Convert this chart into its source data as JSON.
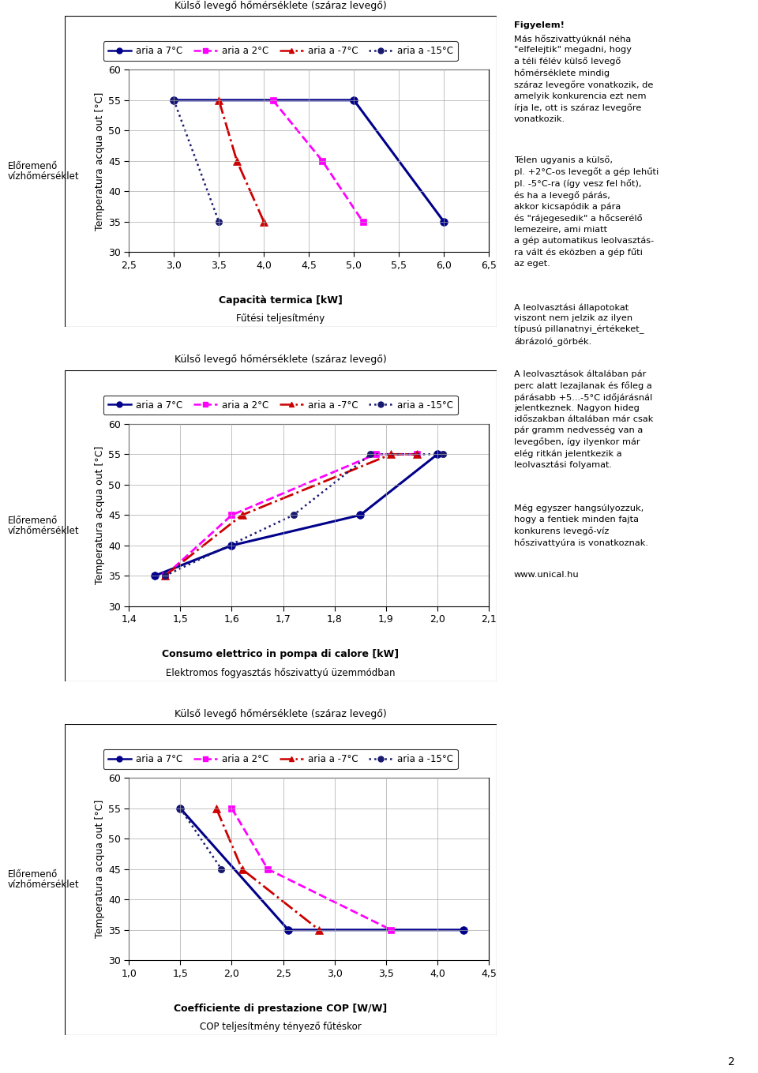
{
  "title_chart": "Külső levegő hőmérséklete (száraz levegő)",
  "ylabel": "Temperatura acqua out [°C]",
  "ylim": [
    30,
    60
  ],
  "yticks": [
    30,
    35,
    40,
    45,
    50,
    55,
    60
  ],
  "chart1": {
    "xlabel_bold": "Capacità termica [kW]",
    "xlabel_normal": "Fűtési teljesítmény",
    "xlim": [
      2.5,
      6.5
    ],
    "xticks": [
      2.5,
      3.0,
      3.5,
      4.0,
      4.5,
      5.0,
      5.5,
      6.0,
      6.5
    ],
    "series": {
      "aria7": {
        "x": [
          3.0,
          5.0,
          6.0
        ],
        "y": [
          55,
          55,
          35
        ]
      },
      "aria2": {
        "x": [
          4.1,
          4.65,
          5.1
        ],
        "y": [
          55,
          45,
          35
        ]
      },
      "ariaN7": {
        "x": [
          3.5,
          3.7,
          4.0
        ],
        "y": [
          55,
          45,
          35
        ]
      },
      "ariaN15": {
        "x": [
          3.0,
          3.5
        ],
        "y": [
          55,
          35
        ]
      }
    }
  },
  "chart2": {
    "xlabel_bold": "Consumo elettrico in pompa di calore [kW]",
    "xlabel_normal": "Elektromos fogyasztás hőszivattyú üzemmódban",
    "xlim": [
      1.4,
      2.1
    ],
    "xticks": [
      1.4,
      1.5,
      1.6,
      1.7,
      1.8,
      1.9,
      2.0,
      2.1
    ],
    "series": {
      "aria7": {
        "x": [
          1.45,
          1.6,
          1.85,
          2.0
        ],
        "y": [
          35,
          40,
          45,
          55
        ]
      },
      "aria2": {
        "x": [
          1.47,
          1.6,
          1.88,
          1.96
        ],
        "y": [
          35,
          45,
          55,
          55
        ]
      },
      "ariaN7": {
        "x": [
          1.47,
          1.62,
          1.91,
          1.96
        ],
        "y": [
          35,
          45,
          55,
          55
        ]
      },
      "ariaN15": {
        "x": [
          1.47,
          1.72,
          1.87,
          2.01
        ],
        "y": [
          35,
          45,
          55,
          55
        ]
      }
    }
  },
  "chart3": {
    "xlabel_bold": "Coefficiente di prestazione COP [W/W]",
    "xlabel_normal": "COP teljesítmény tényező fűtéskor",
    "xlim": [
      1.0,
      4.5
    ],
    "xticks": [
      1.0,
      1.5,
      2.0,
      2.5,
      3.0,
      3.5,
      4.0,
      4.5
    ],
    "series": {
      "aria7": {
        "x": [
          1.5,
          2.55,
          4.25
        ],
        "y": [
          55,
          35,
          35
        ]
      },
      "aria2": {
        "x": [
          2.0,
          2.35,
          3.55
        ],
        "y": [
          55,
          45,
          35
        ]
      },
      "ariaN7": {
        "x": [
          1.85,
          2.1,
          2.85
        ],
        "y": [
          55,
          45,
          35
        ]
      },
      "ariaN15": {
        "x": [
          1.5,
          1.9
        ],
        "y": [
          55,
          45
        ]
      }
    }
  },
  "legend_labels": [
    "aria a 7°C",
    "aria a 2°C",
    "aria a -7°C",
    "aria a -15°C"
  ],
  "text_right": {
    "blocks": [
      {
        "text": "Figyelem!",
        "bold": true,
        "gap_after": false
      },
      {
        "text": "Más hőszivattyúknál néha\n\"elfelejtik\" megadni, hogy\na téli félév külső levegő\nhőmérséklete mindig\nszáraz levegőre vonatkozik, de\namelyik konkurencia ezt nem\nírja le, ott is száraz levegőre\nvonatkozik.",
        "bold": false,
        "gap_after": true
      },
      {
        "text": "Télen ugyanis a külső,\npl. +2°C-os levegőt a gép lehűti\npl. -5°C-ra (így vesz fel hőt),\nés ha a levegő párás,\nakkor kicsapódik a pára\nés \"rájegesedik\" a hőcserélő\nlemezeire, ami miatt\na gép automatikus leolvasztás-\nra vált és eközben a gép fűti\naz eget.",
        "bold": false,
        "gap_after": true
      },
      {
        "text": "A leolvasztási állapotokat\nviszont nem jelzik az ilyen\ntípusú pillanatnyi_értékeket_\nábrázoló_görbék.",
        "bold": false,
        "gap_after": true
      },
      {
        "text": "A leolvasztások általában pár\nperc alatt lezajlanak és főleg a\npárásabb +5...-5°C időjárásnál\njelentkeznek. Nagyon hideg\nidőszakban általában már csak\npár gramm nedvesség van a\nlevegőben, így ilyenkor már\nelég ritkán jelentkezik a\nleolvasztási folyamat.",
        "bold": false,
        "gap_after": true
      },
      {
        "text": "Még egyszer hangsúlyozzuk,\nhogy a fentiek minden fajta\nkonkurens levegő-víz\nhőszivattyúra is vonatkoznak.",
        "bold": false,
        "gap_after": true
      },
      {
        "text": "www.unical.hu",
        "bold": false,
        "gap_after": false
      }
    ]
  },
  "page_number": "2",
  "left_label_line1": "Előremenő",
  "left_label_line2": "vízhőmérséklet"
}
